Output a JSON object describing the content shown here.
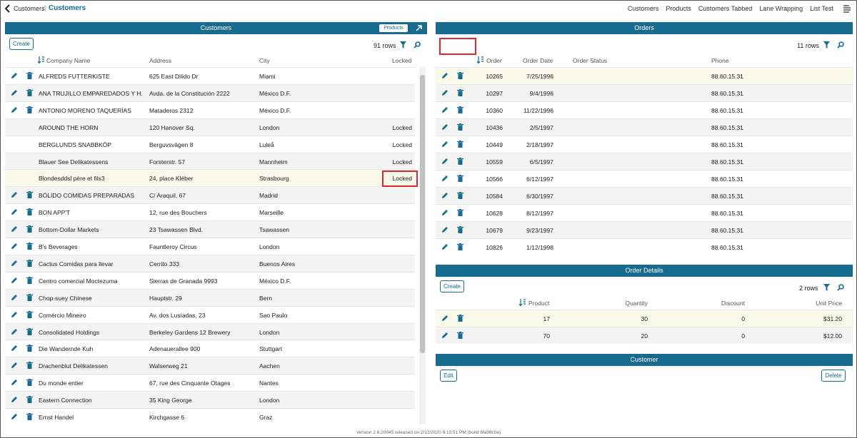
{
  "topbar": {
    "crumb_parent": "Customers",
    "crumb_sep": "|",
    "crumb_current": "Customers",
    "nav": [
      "Customers",
      "Products",
      "Customers Tabbed",
      "Lane Wrapping",
      "List Test"
    ],
    "back_icon": "chevron-left-icon",
    "menu_icon": "menu-icon"
  },
  "customers": {
    "title": "Customers",
    "products_button": "Products",
    "create_label": "Create",
    "row_count": "91 rows",
    "columns": [
      "Company Name",
      "Address",
      "City",
      "Locked"
    ],
    "rows": [
      {
        "company": "ALFREDS FUTTERKISTE",
        "address": "625 East Dilido Dr",
        "city": "Miami",
        "locked": ""
      },
      {
        "company": "ANA TRUJILLO EMPAREDADOS Y H...",
        "address": "Avda. de la Constitución 2222",
        "city": "México D.F.",
        "locked": ""
      },
      {
        "company": "ANTONIO MORENO TAQUERÍAS",
        "address": "Mataderos 2312",
        "city": "México D.F.",
        "locked": ""
      },
      {
        "company": "AROUND THE HORN",
        "address": "120 Hanover Sq.",
        "city": "London",
        "locked": "Locked"
      },
      {
        "company": "BERGLUNDS SNABBKÖP",
        "address": "Berguvsvägen 8",
        "city": "Luleå",
        "locked": "Locked"
      },
      {
        "company": "Blauer See Delikatessens",
        "address": "Forsterstr. 57",
        "city": "Mannheim",
        "locked": "Locked"
      },
      {
        "company": "Blondesddsl père et fils3",
        "address": "24, place Kléber",
        "city": "Strasbourg",
        "locked": "Locked"
      },
      {
        "company": "BÓLIDO COMIDAS PREPARADAS",
        "address": "C/ Araquil, 67",
        "city": "Madrid",
        "locked": ""
      },
      {
        "company": "BON APP'T",
        "address": "12, rue des Bouchers",
        "city": "Marseille",
        "locked": ""
      },
      {
        "company": "Bottom-Dollar Markets",
        "address": "23 Tsawassen Blvd.",
        "city": "Tsawassen",
        "locked": ""
      },
      {
        "company": "B's Beverages",
        "address": "Fauntleroy Circus",
        "city": "London",
        "locked": ""
      },
      {
        "company": "Cactus Comidas para llevar",
        "address": "Cerrito 333",
        "city": "Buenos Aires",
        "locked": ""
      },
      {
        "company": "Centro comercial Moctezuma",
        "address": "Sierras de Granada 9993",
        "city": "México D.F.",
        "locked": ""
      },
      {
        "company": "Chop-suey Chinese",
        "address": "Hauptstr. 29",
        "city": "Bern",
        "locked": ""
      },
      {
        "company": "Comércio Mineiro",
        "address": "Av. dos Lusíadas, 23",
        "city": "Sao Paulo",
        "locked": ""
      },
      {
        "company": "Consolidated Holdings",
        "address": "Berkeley Gardens 12 Brewery",
        "city": "London",
        "locked": ""
      },
      {
        "company": "Die Wandernde Kuh",
        "address": "Adenauerallee 900",
        "city": "Stuttgart",
        "locked": ""
      },
      {
        "company": "Drachenblut Delikatessen",
        "address": "Walserweg 21",
        "city": "Aachen",
        "locked": ""
      },
      {
        "company": "Du monde entier",
        "address": "67, rue des Cinquante Otages",
        "city": "Nantes",
        "locked": ""
      },
      {
        "company": "Eastern Connection",
        "address": "35 King George",
        "city": "London",
        "locked": ""
      },
      {
        "company": "Ernst Handel",
        "address": "Kirchgasse 6",
        "city": "Graz",
        "locked": ""
      }
    ]
  },
  "orders": {
    "title": "Orders",
    "row_count": "11 rows",
    "columns": [
      "Order",
      "Order Date",
      "Order Status",
      "Phone"
    ],
    "rows": [
      {
        "order": "10265",
        "date": "7/25/1996",
        "status": "",
        "phone": "88.60.15.31"
      },
      {
        "order": "10297",
        "date": "9/4/1996",
        "status": "",
        "phone": "88.60.15.31"
      },
      {
        "order": "10360",
        "date": "11/22/1996",
        "status": "",
        "phone": "88.60.15.31"
      },
      {
        "order": "10436",
        "date": "2/5/1997",
        "status": "",
        "phone": "88.60.15.31"
      },
      {
        "order": "10449",
        "date": "2/18/1997",
        "status": "",
        "phone": "88.60.15.31"
      },
      {
        "order": "10559",
        "date": "6/5/1997",
        "status": "",
        "phone": "88.60.15.31"
      },
      {
        "order": "10566",
        "date": "6/12/1997",
        "status": "",
        "phone": "88.60.15.31"
      },
      {
        "order": "10584",
        "date": "6/30/1997",
        "status": "",
        "phone": "88.60.15.31"
      },
      {
        "order": "10628",
        "date": "8/12/1997",
        "status": "",
        "phone": "88.60.15.31"
      },
      {
        "order": "10679",
        "date": "9/23/1997",
        "status": "",
        "phone": "88.60.15.31"
      },
      {
        "order": "10826",
        "date": "1/12/1998",
        "status": "",
        "phone": "88.60.15.31"
      }
    ]
  },
  "order_details": {
    "title": "Order Details",
    "create_label": "Create",
    "row_count": "2 rows",
    "columns": [
      "Product",
      "Quantity",
      "Discount",
      "Unit Price"
    ],
    "rows": [
      {
        "product": "17",
        "quantity": "30",
        "discount": "0",
        "price": "$31.20"
      },
      {
        "product": "70",
        "quantity": "20",
        "discount": "0",
        "price": "$12.00"
      }
    ]
  },
  "customer": {
    "title": "Customer",
    "edit_label": "Edit",
    "delete_label": "Delete"
  },
  "footer": {
    "version": "Version 2.6.20045 released on 2/12/2020 9:13:51 PM (build 6fa98c0e)"
  },
  "colors": {
    "header_bg": "#176b8e",
    "accent": "#1a6e96",
    "highlight": "#e0262c",
    "selected_row": "#fafaeb"
  }
}
